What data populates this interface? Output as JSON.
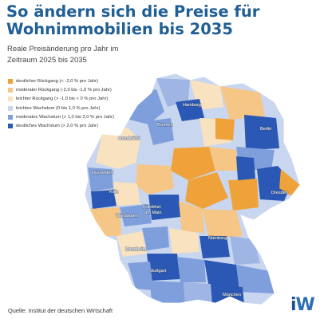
{
  "title": {
    "line1": "So ändern sich die Preise für",
    "line2": "Wohnimmobilien bis 2035"
  },
  "subtitle": {
    "line1": "Reale Preisänderung pro Jahr im",
    "line2": "Zeitraum 2025 bis 2035"
  },
  "legend": [
    {
      "label": "deutlicher Rückgang (< -2,0 % pro Jahr)",
      "color": "#f0a23a"
    },
    {
      "label": "moderater Rückgang (-2,0 bis -1,0 % pro Jahr)",
      "color": "#f6c686"
    },
    {
      "label": "leichter Rückgang (> -1,0 bis < 0 % pro Jahr)",
      "color": "#f8e2c0"
    },
    {
      "label": "leichtes Wachstum (0 bis 1,0 % pro Jahr)",
      "color": "#c9d6ef"
    },
    {
      "label": "moderates Wachstum (> 1,0 bis 2,0 % pro Jahr)",
      "color": "#7f9fdc"
    },
    {
      "label": "deutliches Wachstum (> 2,0 % pro Jahr)",
      "color": "#2a58b4"
    }
  ],
  "cities": {
    "hamburg": "Hamburg",
    "bremen": "Bremen",
    "berlin": "Berlin",
    "osnabrueck": "Osnabrück",
    "duesseldorf": "Düsseldorf",
    "koeln": "Köln",
    "dresden": "Dresden",
    "frankfurt1": "Frankfurt",
    "frankfurt2": "am Main",
    "wiesbaden": "Wiesbaden",
    "mannheim": "Mannheim",
    "nuernberg": "Nürnberg",
    "stuttgart": "Stuttgart",
    "muenchen": "München"
  },
  "source": "Quelle: Institut der deutschen Wirtschaft",
  "logo": {
    "i": "i",
    "w": "W"
  }
}
